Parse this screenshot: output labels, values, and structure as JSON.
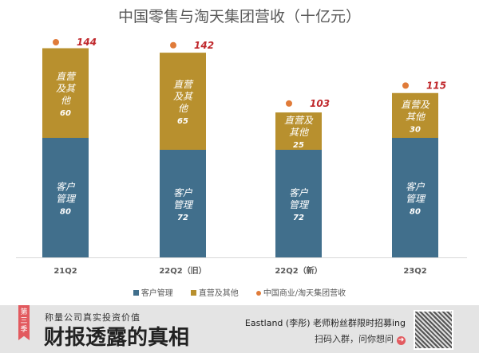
{
  "chart_data": {
    "type": "bar",
    "stacked": true,
    "title": "中国零售与淘天集团营收（十亿元）",
    "categories": [
      "21Q2",
      "22Q2（旧）",
      "22Q2（新）",
      "23Q2"
    ],
    "series": [
      {
        "name": "客户管理",
        "color": "#416f8c",
        "values": [
          80,
          72,
          72,
          80
        ],
        "segment_label": "客户管理"
      },
      {
        "name": "直营及其他",
        "color": "#b8902e",
        "values": [
          60,
          65,
          25,
          30
        ],
        "segment_label": "直营及其他"
      },
      {
        "name": "中国商业/淘天集团营收",
        "color": "#e07b39",
        "type": "scatter",
        "values": [
          144,
          142,
          103,
          115
        ]
      }
    ],
    "ylim": [
      0,
      150
    ],
    "grid": false,
    "legend": "bottom"
  },
  "banner": {
    "tag": "第三季",
    "subtitle": "称量公司真实投资价值",
    "title": "财报透露的真相",
    "promo": "Eastland (李彤) 老师粉丝群限时招募ing",
    "cta": "扫码入群，问你想问"
  }
}
